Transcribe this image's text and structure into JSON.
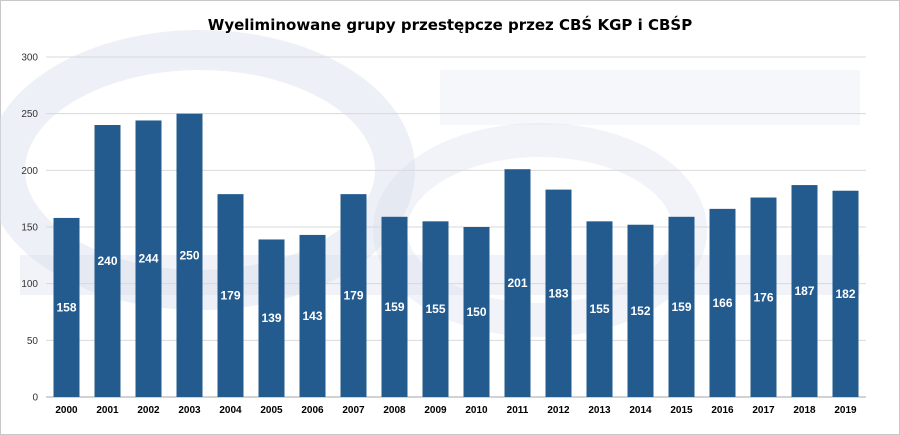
{
  "chart_data": {
    "type": "bar",
    "title": "Wyeliminowane grupy przestępcze przez CBŚ KGP i CBŚP",
    "xlabel": "",
    "ylabel": "",
    "categories": [
      "2000",
      "2001",
      "2002",
      "2003",
      "2004",
      "2005",
      "2006",
      "2007",
      "2008",
      "2009",
      "2010",
      "2011",
      "2012",
      "2013",
      "2014",
      "2015",
      "2016",
      "2017",
      "2018",
      "2019"
    ],
    "values": [
      158,
      240,
      244,
      250,
      179,
      139,
      143,
      179,
      159,
      155,
      150,
      201,
      183,
      155,
      152,
      159,
      166,
      176,
      187,
      182
    ],
    "ylim": [
      0,
      300
    ],
    "yticks": [
      0,
      50,
      100,
      150,
      200,
      250,
      300
    ],
    "grid": true,
    "legend": "none",
    "bar_color": "#245b8e",
    "label_color": "#ffffff",
    "watermark_color": "#d8deea"
  }
}
